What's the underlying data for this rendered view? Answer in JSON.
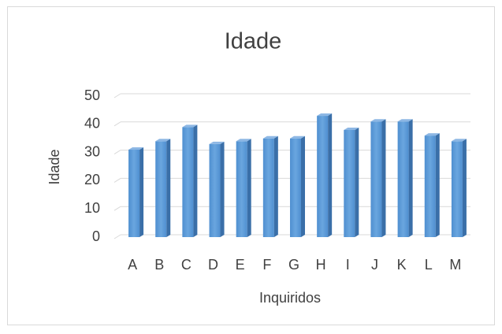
{
  "chart_data": {
    "type": "bar",
    "title": "Idade",
    "x_label": "Inquiridos",
    "y_label": "Idade",
    "categories": [
      "A",
      "B",
      "C",
      "D",
      "E",
      "F",
      "G",
      "H",
      "I",
      "J",
      "K",
      "L",
      "M"
    ],
    "values": [
      31,
      34,
      39,
      33,
      34,
      35,
      35,
      43,
      38,
      41,
      41,
      36,
      34
    ],
    "color": "#5b9bd5",
    "ylim": [
      0,
      50
    ],
    "yticks": [
      0,
      10,
      20,
      30,
      40,
      50
    ],
    "grid": true
  }
}
